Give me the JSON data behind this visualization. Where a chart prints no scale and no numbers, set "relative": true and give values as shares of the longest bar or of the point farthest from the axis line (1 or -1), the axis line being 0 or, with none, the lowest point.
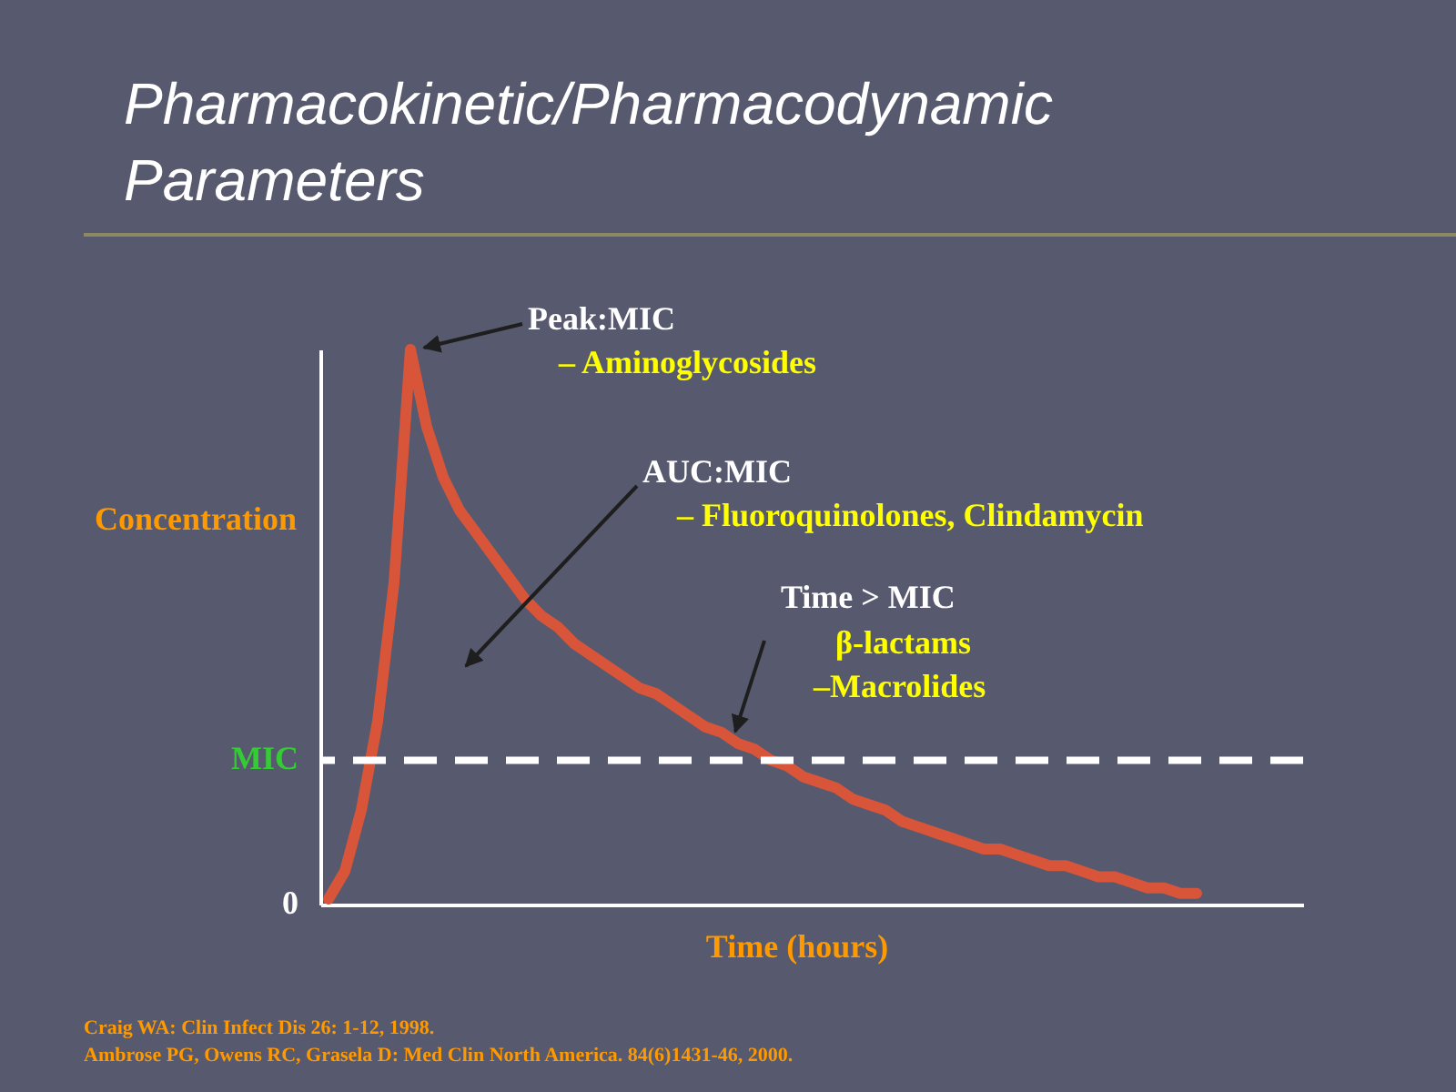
{
  "chart_data": {
    "type": "line",
    "title": "Pharmacokinetic/Pharmacodynamic Parameters",
    "xlabel": "Time (hours)",
    "ylabel": "Concentration",
    "relative": true,
    "marker": "none",
    "line_style": "solid",
    "categories": [
      null,
      null,
      null,
      null,
      null,
      null,
      null,
      null,
      null,
      null,
      null,
      null,
      null,
      null,
      null,
      null,
      null,
      null,
      null,
      null,
      null,
      null,
      null,
      null,
      null,
      null,
      null,
      null,
      null,
      null,
      null,
      null,
      null,
      null,
      null,
      null,
      null,
      null,
      null,
      null,
      null,
      null,
      null,
      null,
      null,
      null,
      null,
      null,
      null,
      null,
      null,
      null,
      null,
      null,
      null,
      null,
      null,
      null,
      null,
      null
    ],
    "series": [
      {
        "color": "#d9553a",
        "values": [
          0.01,
          0.06,
          0.17,
          0.33,
          0.58,
          1,
          0.86,
          0.77,
          0.71,
          0.67,
          0.63,
          0.59,
          0.55,
          0.52,
          0.5,
          0.47,
          0.45,
          0.43,
          0.41,
          0.39,
          0.38,
          0.36,
          0.34,
          0.32,
          0.31,
          0.29,
          0.28,
          0.26,
          0.25,
          0.23,
          0.22,
          0.21,
          0.19,
          0.18,
          0.17,
          0.15,
          0.14,
          0.13,
          0.12,
          0.11,
          0.1,
          0.1,
          0.09,
          0.08,
          0.07,
          0.07,
          0.06,
          0.05,
          0.05,
          0.04,
          0.03,
          0.03,
          0.02,
          0.02,
          null,
          null,
          null,
          null,
          null,
          null
        ]
      }
    ],
    "ref_lines": [
      {
        "axis": "y",
        "value": 0.26,
        "label": "MIC",
        "color": "#ffffff",
        "line_style": "dashed"
      }
    ],
    "annotations": [
      "Peak:MIC",
      "– Aminoglycosides",
      "AUC:MIC",
      "– Fluoroquinolones, Clindamycin",
      "Time > MIC",
      "β-lactams",
      "–Macrolides",
      "Craig WA: Clin Infect Dis 26: 1-12, 1998.",
      "Ambrose PG, Owens RC, Grasela D: Med Clin North America. 84(6)1431-46, 2000.",
      "0"
    ]
  }
}
